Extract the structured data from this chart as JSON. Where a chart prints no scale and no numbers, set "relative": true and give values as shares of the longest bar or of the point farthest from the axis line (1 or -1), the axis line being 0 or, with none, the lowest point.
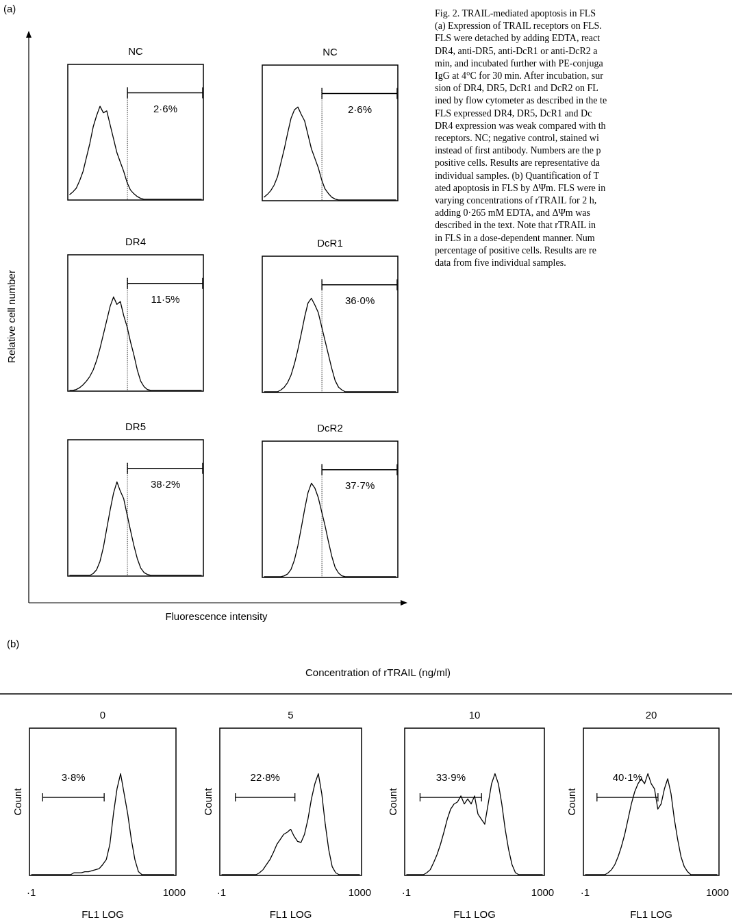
{
  "chart_data": [
    {
      "type": "other",
      "title": "(a)"
    },
    {
      "type": "line",
      "title": "NC",
      "color": "#000000",
      "relative": true,
      "tick_labels": false,
      "annotations": [
        "2·6%"
      ],
      "categories": [
        null,
        null,
        null,
        null,
        null,
        null,
        null,
        null,
        null,
        null,
        null,
        null,
        null,
        null,
        null,
        null,
        null,
        null,
        null,
        null,
        null,
        null,
        null,
        null,
        null,
        null,
        null,
        null,
        null,
        null,
        null,
        null,
        null,
        null,
        null,
        null,
        null,
        null,
        null,
        null
      ],
      "values": [
        0.05,
        0.08,
        0.12,
        0.2,
        0.3,
        0.45,
        0.6,
        0.78,
        0.9,
        1,
        0.93,
        0.95,
        0.8,
        0.65,
        0.5,
        0.4,
        0.3,
        0.18,
        0.1,
        0.06,
        0.03,
        0.01,
        0,
        0,
        0,
        0,
        0,
        0,
        0,
        0,
        0,
        0,
        0,
        0,
        0,
        0,
        0,
        0,
        0,
        0
      ]
    },
    {
      "type": "line",
      "title": "NC",
      "color": "#000000",
      "relative": true,
      "tick_labels": false,
      "annotations": [
        "2·6%"
      ],
      "categories": [
        null,
        null,
        null,
        null,
        null,
        null,
        null,
        null,
        null,
        null,
        null,
        null,
        null,
        null,
        null,
        null,
        null,
        null,
        null,
        null,
        null,
        null,
        null,
        null,
        null,
        null,
        null,
        null,
        null,
        null,
        null,
        null,
        null,
        null,
        null,
        null,
        null,
        null,
        null,
        null
      ],
      "values": [
        0.03,
        0.06,
        0.1,
        0.16,
        0.25,
        0.4,
        0.55,
        0.72,
        0.88,
        0.97,
        1,
        0.92,
        0.85,
        0.7,
        0.55,
        0.45,
        0.35,
        0.22,
        0.12,
        0.07,
        0.03,
        0.01,
        0,
        0,
        0,
        0,
        0,
        0,
        0,
        0,
        0,
        0,
        0,
        0,
        0,
        0,
        0,
        0,
        0,
        0
      ]
    },
    {
      "type": "line",
      "title": "DR4",
      "color": "#000000",
      "ylabel": "Relative cell number",
      "relative": true,
      "tick_labels": false,
      "annotations": [
        "11·5%"
      ],
      "categories": [
        null,
        null,
        null,
        null,
        null,
        null,
        null,
        null,
        null,
        null,
        null,
        null,
        null,
        null,
        null,
        null,
        null,
        null,
        null,
        null,
        null,
        null,
        null,
        null,
        null,
        null,
        null,
        null,
        null,
        null,
        null,
        null,
        null,
        null,
        null,
        null,
        null,
        null,
        null,
        null
      ],
      "values": [
        0,
        0,
        0.01,
        0.03,
        0.06,
        0.1,
        0.15,
        0.22,
        0.32,
        0.45,
        0.6,
        0.75,
        0.9,
        1,
        0.92,
        0.95,
        0.8,
        0.68,
        0.52,
        0.38,
        0.22,
        0.1,
        0.04,
        0.01,
        0,
        0,
        0,
        0,
        0,
        0,
        0,
        0,
        0,
        0,
        0,
        0,
        0,
        0,
        0,
        0
      ]
    },
    {
      "type": "line",
      "title": "DcR1",
      "color": "#000000",
      "relative": true,
      "tick_labels": false,
      "annotations": [
        "36·0%"
      ],
      "categories": [
        null,
        null,
        null,
        null,
        null,
        null,
        null,
        null,
        null,
        null,
        null,
        null,
        null,
        null,
        null,
        null,
        null,
        null,
        null,
        null,
        null,
        null,
        null,
        null,
        null,
        null,
        null,
        null,
        null,
        null,
        null,
        null,
        null,
        null,
        null,
        null,
        null,
        null,
        null,
        null
      ],
      "values": [
        0,
        0,
        0,
        0,
        0,
        0.02,
        0.05,
        0.1,
        0.18,
        0.3,
        0.45,
        0.62,
        0.8,
        0.95,
        1,
        0.93,
        0.85,
        0.7,
        0.55,
        0.4,
        0.25,
        0.12,
        0.05,
        0.02,
        0,
        0,
        0,
        0,
        0,
        0,
        0,
        0,
        0,
        0,
        0,
        0,
        0,
        0,
        0,
        0
      ]
    },
    {
      "type": "line",
      "title": "DR5",
      "color": "#000000",
      "xlabel": "Fluorescence intensity",
      "relative": true,
      "tick_labels": false,
      "annotations": [
        "38·2%"
      ],
      "categories": [
        null,
        null,
        null,
        null,
        null,
        null,
        null,
        null,
        null,
        null,
        null,
        null,
        null,
        null,
        null,
        null,
        null,
        null,
        null,
        null,
        null,
        null,
        null,
        null,
        null,
        null,
        null,
        null,
        null,
        null,
        null,
        null,
        null,
        null,
        null,
        null,
        null,
        null,
        null,
        null
      ],
      "values": [
        0,
        0,
        0,
        0,
        0,
        0,
        0,
        0.02,
        0.06,
        0.15,
        0.3,
        0.5,
        0.7,
        0.88,
        1,
        0.9,
        0.82,
        0.65,
        0.48,
        0.32,
        0.18,
        0.08,
        0.03,
        0.01,
        0,
        0,
        0,
        0,
        0,
        0,
        0,
        0,
        0,
        0,
        0,
        0,
        0,
        0,
        0,
        0
      ]
    },
    {
      "type": "line",
      "title": "DcR2",
      "color": "#000000",
      "relative": true,
      "tick_labels": false,
      "annotations": [
        "37·7%"
      ],
      "categories": [
        null,
        null,
        null,
        null,
        null,
        null,
        null,
        null,
        null,
        null,
        null,
        null,
        null,
        null,
        null,
        null,
        null,
        null,
        null,
        null,
        null,
        null,
        null,
        null,
        null,
        null,
        null,
        null,
        null,
        null,
        null,
        null,
        null,
        null,
        null,
        null,
        null,
        null,
        null,
        null
      ],
      "values": [
        0,
        0,
        0,
        0,
        0,
        0,
        0.01,
        0.03,
        0.08,
        0.18,
        0.33,
        0.52,
        0.72,
        0.9,
        1,
        0.95,
        0.85,
        0.7,
        0.55,
        0.38,
        0.22,
        0.1,
        0.04,
        0.01,
        0,
        0,
        0,
        0,
        0,
        0,
        0,
        0,
        0,
        0,
        0,
        0,
        0,
        0,
        0,
        0
      ]
    },
    {
      "type": "other",
      "annotations": [
        "Fig. 2. TRAIL-mediated apoptosis in FLS",
        "(a) Expression of TRAIL receptors on FLS.",
        "FLS were detached by adding EDTA, react",
        "DR4, anti-DR5, anti-DcR1 or anti-DcR2 a",
        "min, and incubated further with PE-conjuga",
        "IgG at 4°C for 30 min. After incubation, sur",
        "sion of DR4, DR5, DcR1 and DcR2 on FL",
        "ined by flow cytometer as described in the te",
        "FLS expressed DR4, DR5, DcR1 and Dc",
        "DR4 expression was weak compared with th",
        "receptors. NC; negative control, stained wi",
        "instead of first antibody. Numbers are the p",
        "positive cells. Results are representative da",
        "individual samples. (b) Quantification of T",
        "ated apoptosis in FLS by ΔΨm. FLS were in",
        "varying concentrations of rTRAIL for 2 h,",
        "adding 0·265 mM EDTA, and ΔΨm was",
        "described in the text. Note that rTRAIL in",
        "in FLS in a dose-dependent manner. Num",
        "percentage of positive cells. Results are re",
        "data from five individual samples."
      ]
    },
    {
      "type": "other",
      "title": "(b)",
      "subtitle": "Concentration of rTRAIL (ng/ml)"
    },
    {
      "type": "line",
      "title": "0",
      "xlabel": "FL1 LOG",
      "ylabel": "Count",
      "relative": true,
      "tick_labels": "x",
      "annotations": [
        "3·8%"
      ],
      "categories": [
        "·1",
        null,
        null,
        null,
        null,
        null,
        null,
        null,
        null,
        null,
        null,
        null,
        null,
        null,
        null,
        null,
        null,
        null,
        null,
        null,
        null,
        null,
        null,
        null,
        null,
        null,
        null,
        null,
        null,
        null,
        null,
        null,
        null,
        null,
        null,
        null,
        null,
        null,
        null,
        null,
        "1000"
      ],
      "values": [
        0,
        0,
        0,
        0,
        0,
        0,
        0,
        0,
        0,
        0,
        0,
        0,
        0.02,
        0.02,
        0.02,
        0.03,
        0.03,
        0.04,
        0.05,
        0.06,
        0.1,
        0.15,
        0.3,
        0.6,
        0.85,
        1,
        0.8,
        0.6,
        0.35,
        0.15,
        0.03,
        0,
        0,
        0,
        0,
        0,
        0,
        0,
        0,
        0,
        0
      ]
    },
    {
      "type": "line",
      "title": "5",
      "xlabel": "FL1 LOG",
      "ylabel": "Count",
      "relative": true,
      "tick_labels": "x",
      "annotations": [
        "22·8%"
      ],
      "categories": [
        "·1",
        null,
        null,
        null,
        null,
        null,
        null,
        null,
        null,
        null,
        null,
        null,
        null,
        null,
        null,
        null,
        null,
        null,
        null,
        null,
        null,
        null,
        null,
        null,
        null,
        null,
        null,
        null,
        null,
        null,
        null,
        null,
        null,
        null,
        null,
        null,
        null,
        null,
        null,
        null,
        "1000"
      ],
      "values": [
        0,
        0,
        0,
        0,
        0,
        0,
        0,
        0,
        0,
        0,
        0,
        0.02,
        0.05,
        0.1,
        0.15,
        0.22,
        0.3,
        0.35,
        0.4,
        0.42,
        0.45,
        0.38,
        0.33,
        0.32,
        0.4,
        0.55,
        0.75,
        0.9,
        1,
        0.8,
        0.5,
        0.25,
        0.08,
        0.02,
        0,
        0,
        0,
        0,
        0,
        0,
        0
      ]
    },
    {
      "type": "line",
      "title": "10",
      "xlabel": "FL1 LOG",
      "ylabel": "Count",
      "relative": true,
      "tick_labels": "x",
      "annotations": [
        "33·9%"
      ],
      "categories": [
        "·1",
        null,
        null,
        null,
        null,
        null,
        null,
        null,
        null,
        null,
        null,
        null,
        null,
        null,
        null,
        null,
        null,
        null,
        null,
        null,
        null,
        null,
        null,
        null,
        null,
        null,
        null,
        null,
        null,
        null,
        null,
        null,
        null,
        null,
        null,
        null,
        null,
        null,
        null,
        null,
        "1000"
      ],
      "values": [
        0,
        0,
        0,
        0,
        0,
        0,
        0.02,
        0.05,
        0.12,
        0.2,
        0.3,
        0.42,
        0.55,
        0.65,
        0.7,
        0.72,
        0.78,
        0.7,
        0.75,
        0.7,
        0.78,
        0.6,
        0.55,
        0.5,
        0.7,
        0.9,
        1,
        0.9,
        0.7,
        0.45,
        0.25,
        0.1,
        0.02,
        0,
        0,
        0,
        0,
        0,
        0,
        0,
        0
      ]
    },
    {
      "type": "line",
      "title": "20",
      "xlabel": "FL1 LOG",
      "ylabel": "Count",
      "relative": true,
      "tick_labels": "x",
      "annotations": [
        "40·1%"
      ],
      "categories": [
        "·1",
        null,
        null,
        null,
        null,
        null,
        null,
        null,
        null,
        null,
        null,
        null,
        null,
        null,
        null,
        null,
        null,
        null,
        null,
        null,
        null,
        null,
        null,
        null,
        null,
        null,
        null,
        null,
        null,
        null,
        null,
        null,
        null,
        null,
        null,
        null,
        null,
        null,
        null,
        null,
        "1000"
      ],
      "values": [
        0,
        0,
        0,
        0,
        0,
        0,
        0,
        0.02,
        0.05,
        0.1,
        0.18,
        0.28,
        0.4,
        0.55,
        0.7,
        0.82,
        0.9,
        0.95,
        0.9,
        1,
        0.9,
        0.85,
        0.65,
        0.7,
        0.85,
        0.95,
        0.8,
        0.55,
        0.35,
        0.18,
        0.08,
        0.03,
        0,
        0,
        0,
        0,
        0,
        0,
        0,
        0,
        0
      ]
    }
  ]
}
